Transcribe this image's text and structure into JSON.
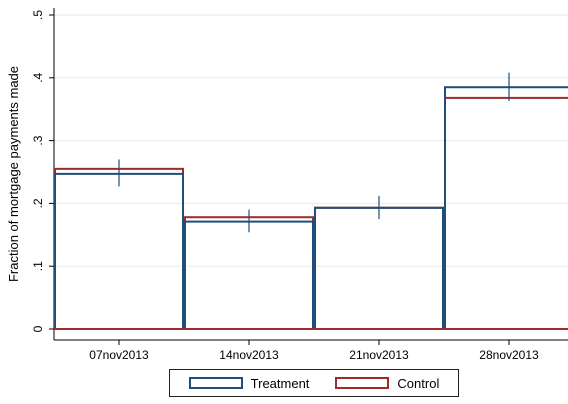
{
  "chart_data": {
    "type": "bar",
    "categories": [
      "07nov2013",
      "14nov2013",
      "21nov2013",
      "28nov2013"
    ],
    "ylabel": "Fraction of mortgage payments made",
    "xlabel": "",
    "ylim": [
      0,
      0.5
    ],
    "y_ticks": [
      0,
      0.1,
      0.2,
      0.3,
      0.4,
      0.5
    ],
    "y_tick_labels": [
      "0",
      ".1",
      ".2",
      ".3",
      ".4",
      ".5"
    ],
    "grid": true,
    "legend_position": "bottom",
    "series": [
      {
        "name": "Treatment",
        "color": "#1f4e79",
        "values": [
          0.247,
          0.171,
          0.193,
          0.385
        ],
        "ci_low": [
          0.227,
          0.154,
          0.175,
          0.363
        ],
        "ci_high": [
          0.27,
          0.19,
          0.212,
          0.408
        ]
      },
      {
        "name": "Control",
        "color": "#9e2a2b",
        "values": [
          0.255,
          0.178,
          0.193,
          0.368
        ]
      }
    ]
  }
}
